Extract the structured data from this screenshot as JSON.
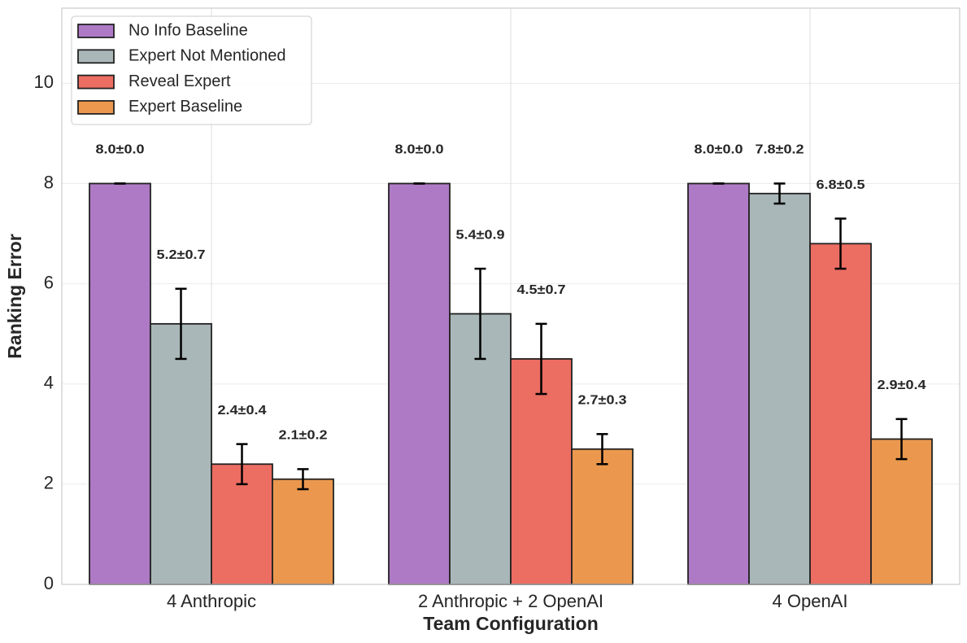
{
  "chart_data": {
    "type": "bar",
    "x_label": "Team Configuration",
    "y_label": "Ranking Error",
    "categories": [
      "4 Anthropic",
      "2 Anthropic + 2 OpenAI",
      "4 OpenAI"
    ],
    "series": [
      {
        "name": "No Info Baseline",
        "color": "#af7ac5",
        "values": [
          8.0,
          8.0,
          8.0
        ],
        "errors": [
          0.0,
          0.0,
          0.0
        ],
        "value_labels": [
          "8.0±0.0",
          "8.0±0.0",
          "8.0±0.0"
        ]
      },
      {
        "name": "Expert Not Mentioned",
        "color": "#aab7b8",
        "values": [
          5.2,
          5.4,
          7.8
        ],
        "errors": [
          0.7,
          0.9,
          0.2
        ],
        "value_labels": [
          "5.2±0.7",
          "5.4±0.9",
          "7.8±0.2"
        ]
      },
      {
        "name": "Reveal Expert",
        "color": "#ec6d62",
        "values": [
          2.4,
          4.5,
          6.8
        ],
        "errors": [
          0.4,
          0.7,
          0.5
        ],
        "value_labels": [
          "2.4±0.4",
          "4.5±0.7",
          "6.8±0.5"
        ]
      },
      {
        "name": "Expert Baseline",
        "color": "#eb984e",
        "values": [
          2.1,
          2.7,
          2.9
        ],
        "errors": [
          0.2,
          0.3,
          0.4
        ],
        "value_labels": [
          "2.1±0.2",
          "2.7±0.3",
          "2.9±0.4"
        ]
      }
    ],
    "ylim": [
      0,
      11.5
    ],
    "yticks": [
      0,
      2,
      4,
      6,
      8,
      10
    ],
    "grid": true,
    "legend": "upper-left"
  }
}
